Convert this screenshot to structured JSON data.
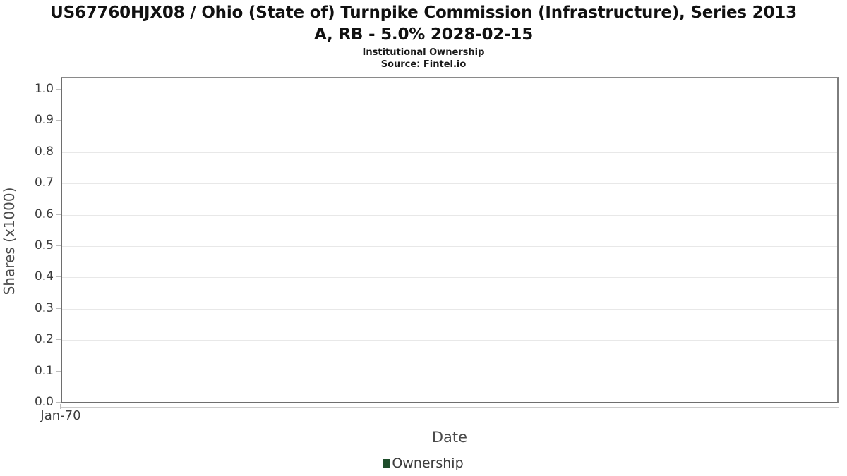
{
  "header": {
    "title_line1": "US67760HJX08 / Ohio (State of) Turnpike Commission (Infrastructure), Series 2013",
    "title_line2": "A, RB - 5.0% 2028-02-15",
    "subtitle": "Institutional Ownership",
    "source": "Source: Fintel.io"
  },
  "chart_data": {
    "type": "line",
    "title": "US67760HJX08 / Ohio (State of) Turnpike Commission (Infrastructure), Series 2013 A, RB - 5.0% 2028-02-15",
    "subtitle": "Institutional Ownership",
    "source": "Source: Fintel.io",
    "xlabel": "Date",
    "ylabel": "Shares (x1000)",
    "x_tick_labels": [
      "Jan-70"
    ],
    "y_ticks": [
      0.0,
      0.1,
      0.2,
      0.3,
      0.4,
      0.5,
      0.6,
      0.7,
      0.8,
      0.9,
      1.0
    ],
    "ylim": [
      0.0,
      1.04
    ],
    "grid": true,
    "legend_position": "bottom",
    "series": [
      {
        "name": "Ownership",
        "color": "#1e4d2b",
        "x": [],
        "values": []
      }
    ],
    "colors": {
      "gridline": "#e8e8e8",
      "axis_border": "#6e6e6e",
      "tick_mark": "#bdbdbd",
      "tick_text": "#3c3c3c",
      "axis_title_text": "#4a4a4a",
      "legend_marker": "#1e4d2b"
    }
  },
  "legend": {
    "items": [
      {
        "label": "Ownership",
        "color": "#1e4d2b"
      }
    ]
  }
}
